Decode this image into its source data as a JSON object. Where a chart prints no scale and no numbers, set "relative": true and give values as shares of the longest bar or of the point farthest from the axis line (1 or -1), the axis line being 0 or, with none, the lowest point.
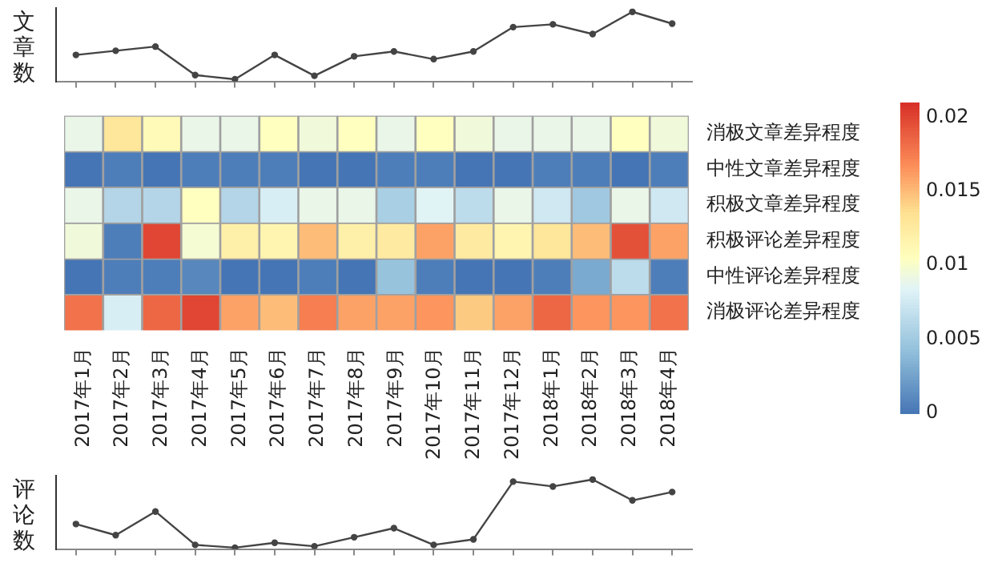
{
  "chart_data": [
    {
      "type": "line",
      "ylabel": "文章数",
      "categories": [
        null,
        null,
        null,
        null,
        null,
        null,
        null,
        null,
        null,
        null,
        null,
        null,
        null,
        null,
        null,
        null
      ],
      "relative": true,
      "color": "#444444",
      "marker": "circle",
      "values": [
        0.38,
        0.44,
        0.5,
        0.09,
        0.03,
        0.38,
        0.08,
        0.36,
        0.43,
        0.32,
        0.43,
        0.78,
        0.82,
        0.68,
        1,
        0.83
      ]
    },
    {
      "type": "heatmap",
      "categories": [
        "2017年1月",
        "2017年2月",
        "2017年3月",
        "2017年4月",
        "2017年5月",
        "2017年6月",
        "2017年7月",
        "2017年8月",
        "2017年9月",
        "2017年10月",
        "2017年11月",
        "2017年12月",
        "2018年1月",
        "2018年2月",
        "2018年3月",
        "2018年4月"
      ],
      "y_categories": [
        "消极文章差异程度",
        "中性文章差异程度",
        "积极文章差异程度",
        "积极评论差异程度",
        "中性评论差异程度",
        "消极评论差异程度"
      ],
      "cells": [
        [
          0.009,
          0.013,
          0.011,
          0.009,
          0.009,
          0.0105,
          0.0095,
          0.0105,
          0.009,
          0.0105,
          0.0095,
          0.009,
          0.009,
          0.009,
          0.0105,
          0.0095
        ],
        [
          0,
          0.0005,
          0,
          0.0005,
          0.0005,
          0.0005,
          0,
          0,
          0.0005,
          0.0005,
          0,
          0,
          0.0005,
          0.0005,
          0,
          0.0005
        ],
        [
          0.009,
          0.006,
          0.006,
          0.0105,
          0.006,
          0.008,
          0.009,
          0.009,
          0.0055,
          0.0085,
          0.0065,
          0.009,
          0.0075,
          0.005,
          0.009,
          0.0075
        ],
        [
          0.0095,
          0.0005,
          0.02,
          0.0098,
          0.012,
          0.0115,
          0.015,
          0.012,
          0.0125,
          0.016,
          0.0125,
          0.0115,
          0.013,
          0.015,
          0.0195,
          0.016
        ],
        [
          0,
          0.0005,
          0.0005,
          0.001,
          0,
          0,
          0.0005,
          0,
          0.0045,
          0.0005,
          0,
          0,
          0.0005,
          0.003,
          0.0065,
          0.0005
        ],
        [
          0.018,
          0.008,
          0.0185,
          0.02,
          0.016,
          0.015,
          0.0175,
          0.016,
          0.016,
          0.0165,
          0.0145,
          0.016,
          0.0185,
          0.0165,
          0.0165,
          0.018
        ]
      ],
      "clim": [
        0,
        0.021
      ],
      "cticks": [
        0,
        0.005,
        0.01,
        0.015,
        0.02
      ]
    },
    {
      "type": "line",
      "ylabel": "评论数",
      "categories": [
        null,
        null,
        null,
        null,
        null,
        null,
        null,
        null,
        null,
        null,
        null,
        null,
        null,
        null,
        null,
        null
      ],
      "relative": true,
      "color": "#444444",
      "marker": "circle",
      "values": [
        0.36,
        0.2,
        0.54,
        0.06,
        0.02,
        0.09,
        0.04,
        0.17,
        0.3,
        0.06,
        0.14,
        0.97,
        0.9,
        1,
        0.7,
        0.82
      ]
    }
  ]
}
